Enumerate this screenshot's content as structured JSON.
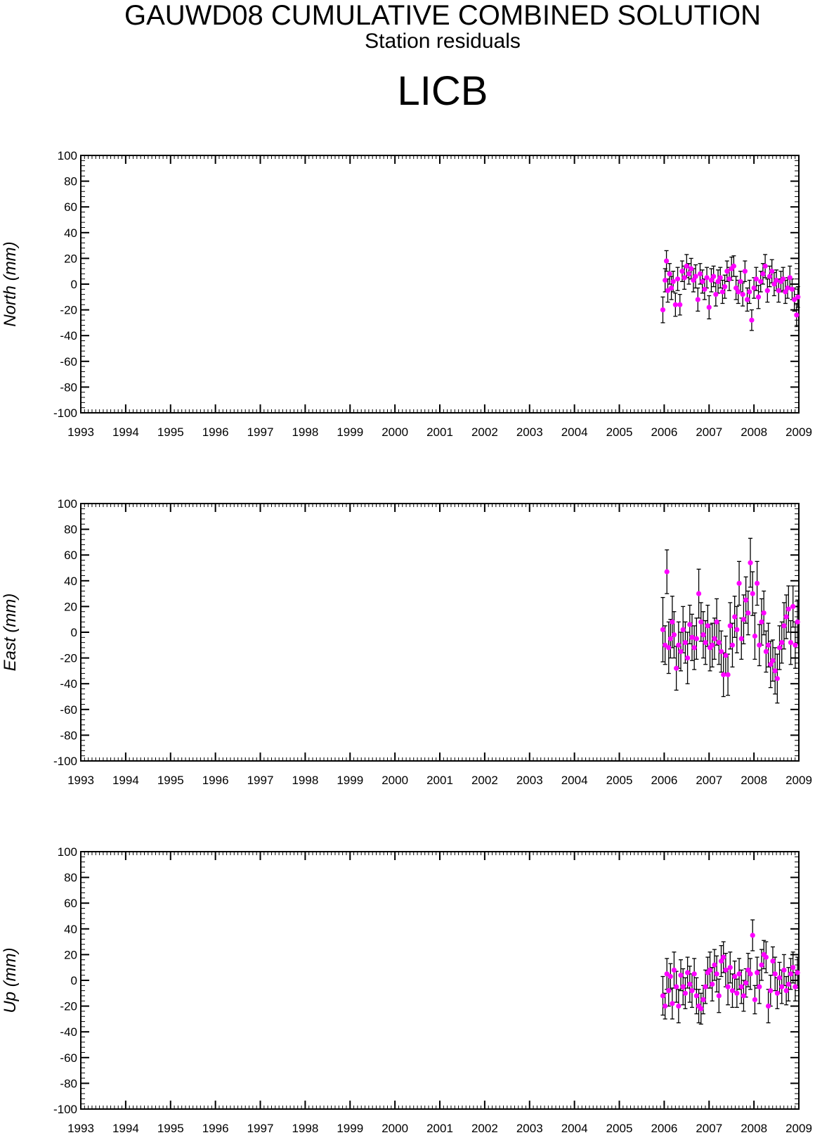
{
  "header": {
    "title": "GAUWD08 CUMULATIVE COMBINED SOLUTION",
    "subtitle": "Station residuals",
    "station": "LICB"
  },
  "colors": {
    "marker": "#ff00ff",
    "errorbar": "#000000",
    "axis": "#000000"
  },
  "chart_data": [
    {
      "type": "scatter",
      "ylabel": "North (mm)",
      "xlim": [
        1993,
        2009
      ],
      "ylim": [
        -100,
        100
      ],
      "xticks": [
        "1993",
        "1994",
        "1995",
        "1996",
        "1997",
        "1998",
        "1999",
        "2000",
        "2001",
        "2002",
        "2003",
        "2004",
        "2005",
        "2006",
        "2007",
        "2008",
        "2009"
      ],
      "yticks": [
        "100",
        "80",
        "60",
        "40",
        "20",
        "0",
        "-20",
        "-40",
        "-60",
        "-80",
        "-100"
      ],
      "series": [
        {
          "x": [
            2005.97,
            2006.02,
            2006.05,
            2006.08,
            2006.12,
            2006.16,
            2006.2,
            2006.25,
            2006.3,
            2006.35,
            2006.4,
            2006.45,
            2006.5,
            2006.55,
            2006.6,
            2006.65,
            2006.7,
            2006.75,
            2006.8,
            2006.85,
            2006.9,
            2006.95,
            2007.0,
            2007.05,
            2007.1,
            2007.15,
            2007.2,
            2007.25,
            2007.3,
            2007.35,
            2007.4,
            2007.45,
            2007.5,
            2007.55,
            2007.6,
            2007.65,
            2007.7,
            2007.75,
            2007.8,
            2007.85,
            2007.9,
            2007.95,
            2008.0,
            2008.05,
            2008.1,
            2008.15,
            2008.2,
            2008.25,
            2008.3,
            2008.35,
            2008.4,
            2008.45,
            2008.5,
            2008.55,
            2008.6,
            2008.65,
            2008.7,
            2008.75,
            2008.8,
            2008.85,
            2008.9,
            2008.95,
            2008.98
          ],
          "y": [
            -20,
            3,
            18,
            -5,
            8,
            -3,
            2,
            -16,
            4,
            -16,
            10,
            5,
            14,
            8,
            12,
            3,
            6,
            -12,
            8,
            2,
            -4,
            5,
            -18,
            3,
            6,
            -8,
            2,
            5,
            -6,
            -2,
            10,
            4,
            12,
            14,
            -3,
            -6,
            2,
            -8,
            10,
            -12,
            -6,
            -28,
            -3,
            4,
            -10,
            2,
            8,
            14,
            -5,
            6,
            10,
            0,
            3,
            -5,
            2,
            4,
            -6,
            -3,
            5,
            -4,
            -12,
            -24,
            -10
          ],
          "err": [
            10,
            9,
            8,
            9,
            8,
            9,
            8,
            9,
            9,
            8,
            8,
            9,
            9,
            8,
            8,
            9,
            9,
            9,
            8,
            9,
            8,
            8,
            9,
            9,
            8,
            9,
            9,
            8,
            9,
            9,
            8,
            9,
            9,
            8,
            9,
            9,
            8,
            9,
            8,
            9,
            9,
            8,
            8,
            9,
            9,
            8,
            8,
            9,
            9,
            8,
            9,
            9,
            8,
            9,
            8,
            9,
            9,
            8,
            9,
            8,
            9,
            9,
            8
          ]
        }
      ]
    },
    {
      "type": "scatter",
      "ylabel": "East (mm)",
      "xlim": [
        1993,
        2009
      ],
      "ylim": [
        -100,
        100
      ],
      "xticks": [
        "1993",
        "1994",
        "1995",
        "1996",
        "1997",
        "1998",
        "1999",
        "2000",
        "2001",
        "2002",
        "2003",
        "2004",
        "2005",
        "2006",
        "2007",
        "2008",
        "2009"
      ],
      "yticks": [
        "100",
        "80",
        "60",
        "40",
        "20",
        "0",
        "-20",
        "-40",
        "-60",
        "-80",
        "-100"
      ],
      "series": [
        {
          "x": [
            2005.97,
            2006.02,
            2006.06,
            2006.1,
            2006.14,
            2006.18,
            2006.22,
            2006.27,
            2006.32,
            2006.37,
            2006.42,
            2006.47,
            2006.52,
            2006.57,
            2006.62,
            2006.67,
            2006.72,
            2006.77,
            2006.82,
            2006.87,
            2006.92,
            2006.97,
            2007.02,
            2007.07,
            2007.12,
            2007.17,
            2007.22,
            2007.27,
            2007.32,
            2007.37,
            2007.42,
            2007.47,
            2007.52,
            2007.57,
            2007.62,
            2007.67,
            2007.72,
            2007.77,
            2007.82,
            2007.87,
            2007.92,
            2007.97,
            2008.02,
            2008.07,
            2008.12,
            2008.17,
            2008.22,
            2008.27,
            2008.32,
            2008.37,
            2008.42,
            2008.47,
            2008.52,
            2008.57,
            2008.62,
            2008.67,
            2008.72,
            2008.77,
            2008.82,
            2008.87,
            2008.92,
            2008.97
          ],
          "y": [
            2,
            -10,
            47,
            -12,
            -5,
            8,
            -2,
            -28,
            -10,
            -15,
            2,
            -8,
            -20,
            6,
            -4,
            -12,
            -5,
            30,
            8,
            -2,
            -8,
            5,
            -12,
            -10,
            -5,
            8,
            -8,
            -15,
            -33,
            -18,
            -33,
            5,
            -10,
            12,
            2,
            38,
            -5,
            10,
            25,
            15,
            54,
            30,
            -3,
            38,
            -10,
            8,
            15,
            -15,
            -10,
            -25,
            -22,
            -30,
            -36,
            -12,
            -8,
            5,
            12,
            18,
            -8,
            20,
            -10,
            8
          ],
          "err": [
            25,
            15,
            17,
            20,
            15,
            20,
            18,
            17,
            18,
            15,
            18,
            16,
            20,
            15,
            18,
            17,
            16,
            19,
            15,
            18,
            17,
            16,
            18,
            17,
            16,
            18,
            17,
            16,
            17,
            15,
            16,
            18,
            17,
            16,
            18,
            17,
            16,
            19,
            18,
            17,
            19,
            17,
            18,
            17,
            16,
            18,
            17,
            16,
            17,
            18,
            16,
            18,
            19,
            17,
            16,
            18,
            17,
            18,
            17,
            16,
            18,
            17
          ]
        }
      ]
    },
    {
      "type": "scatter",
      "ylabel": "Up (mm)",
      "xlim": [
        1993,
        2009
      ],
      "ylim": [
        -100,
        100
      ],
      "xticks": [
        "1993",
        "1994",
        "1995",
        "1996",
        "1997",
        "1998",
        "1999",
        "2000",
        "2001",
        "2002",
        "2003",
        "2004",
        "2005",
        "2006",
        "2007",
        "2008",
        "2009"
      ],
      "yticks": [
        "100",
        "80",
        "60",
        "40",
        "20",
        "0",
        "-20",
        "-40",
        "-60",
        "-80",
        "-100"
      ],
      "series": [
        {
          "x": [
            2005.97,
            2006.02,
            2006.06,
            2006.1,
            2006.14,
            2006.18,
            2006.22,
            2006.27,
            2006.32,
            2006.37,
            2006.42,
            2006.47,
            2006.52,
            2006.57,
            2006.62,
            2006.67,
            2006.72,
            2006.77,
            2006.82,
            2006.87,
            2006.92,
            2006.97,
            2007.02,
            2007.07,
            2007.12,
            2007.17,
            2007.22,
            2007.27,
            2007.32,
            2007.37,
            2007.42,
            2007.47,
            2007.52,
            2007.57,
            2007.62,
            2007.67,
            2007.72,
            2007.77,
            2007.82,
            2007.87,
            2007.92,
            2007.97,
            2008.02,
            2008.07,
            2008.12,
            2008.17,
            2008.22,
            2008.27,
            2008.32,
            2008.37,
            2008.42,
            2008.47,
            2008.52,
            2008.57,
            2008.62,
            2008.67,
            2008.72,
            2008.77,
            2008.82,
            2008.87,
            2008.92,
            2008.97
          ],
          "y": [
            -12,
            -20,
            5,
            -8,
            3,
            -18,
            8,
            -5,
            -20,
            4,
            -5,
            -10,
            6,
            -3,
            -8,
            5,
            -12,
            -20,
            -22,
            -15,
            -5,
            6,
            8,
            -3,
            12,
            5,
            -12,
            15,
            18,
            8,
            -5,
            10,
            -8,
            3,
            -10,
            5,
            -5,
            -12,
            -2,
            8,
            5,
            35,
            -15,
            6,
            -5,
            12,
            20,
            18,
            -20,
            -8,
            15,
            5,
            -10,
            2,
            -5,
            8,
            -8,
            -3,
            5,
            10,
            -5,
            6
          ],
          "err": [
            15,
            10,
            12,
            12,
            10,
            12,
            14,
            12,
            13,
            12,
            14,
            12,
            12,
            14,
            13,
            12,
            14,
            13,
            12,
            11,
            13,
            12,
            14,
            13,
            12,
            14,
            13,
            12,
            12,
            13,
            14,
            12,
            13,
            12,
            11,
            12,
            13,
            12,
            11,
            13,
            12,
            12,
            11,
            12,
            13,
            12,
            11,
            12,
            13,
            12,
            11,
            13,
            12,
            12,
            13,
            12,
            11,
            13,
            12,
            12,
            11,
            12
          ]
        }
      ]
    }
  ]
}
